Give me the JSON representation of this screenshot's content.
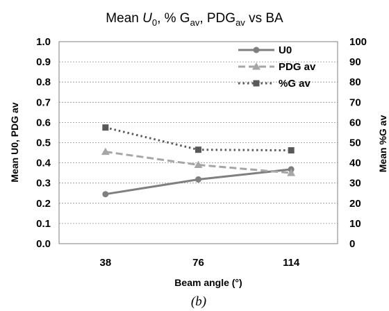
{
  "chart_data": {
    "type": "line",
    "title": {
      "prefix": "Mean ",
      "u_main": "U",
      "u_sub": "0",
      "sep1": ", % G",
      "g_sub": "av",
      "sep2": ", PDG",
      "p_sub": "av",
      "suffix": " vs BA"
    },
    "xlabel": "Beam angle (°)",
    "ylabel_left": "Mean U0, PDG av",
    "ylabel_right": "Mean %G av",
    "categories": [
      "38",
      "76",
      "114"
    ],
    "y_left_range": [
      0,
      1
    ],
    "y_left_ticks": [
      "0.0",
      "0.1",
      "0.2",
      "0.3",
      "0.4",
      "0.5",
      "0.6",
      "0.7",
      "0.8",
      "0.9",
      "1.0"
    ],
    "y_right_range": [
      0,
      100
    ],
    "y_right_ticks": [
      "0",
      "10",
      "20",
      "30",
      "40",
      "50",
      "60",
      "70",
      "80",
      "90",
      "100"
    ],
    "grid": true,
    "legend_position": "top-right",
    "series": [
      {
        "name": "U0",
        "axis": "left",
        "values": [
          0.245,
          0.318,
          0.368
        ],
        "style": "solid",
        "marker": "circle",
        "color": "#7f7f7f"
      },
      {
        "name": "PDG av",
        "axis": "left",
        "values": [
          0.455,
          0.39,
          0.35
        ],
        "style": "dashed",
        "marker": "triangle",
        "color": "#a6a6a6"
      },
      {
        "name": "%G av",
        "axis": "right",
        "values": [
          57.5,
          46.5,
          46.2
        ],
        "style": "dotted",
        "marker": "square",
        "color": "#595959"
      }
    ],
    "caption": "(b)"
  }
}
